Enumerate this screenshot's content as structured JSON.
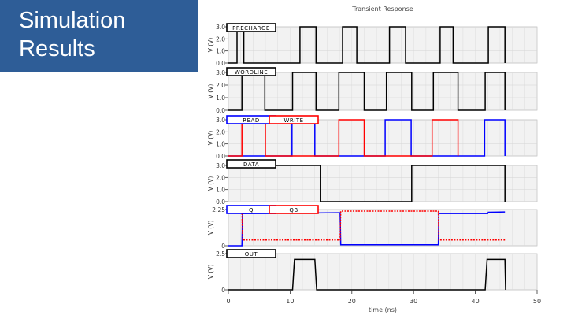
{
  "slide": {
    "title": "Simulation\nResults",
    "title_panel_color": "#2e5d97"
  },
  "chart_data": {
    "type": "line",
    "title": "Transient Response",
    "xlabel": "time (ns)",
    "xlim": [
      0,
      50
    ],
    "xticks": [
      "0",
      "10",
      "20",
      "30",
      "40",
      "50"
    ],
    "grid": true,
    "panels": [
      {
        "ylabel": "V (V)",
        "ylim": [
          0,
          3.0
        ],
        "yticks": [
          "3.0",
          "2.0",
          "1.0",
          "0.0"
        ],
        "legend": [
          {
            "text": "PRECHARGE",
            "color": "#000000"
          }
        ],
        "series": [
          {
            "color": "#000000",
            "dash": false,
            "x": [
              0,
              1.4,
              1.4,
              2.5,
              2.5,
              11.6,
              11.6,
              14.2,
              14.2,
              18.5,
              18.5,
              20.8,
              20.8,
              26.1,
              26.1,
              28.7,
              28.7,
              34.3,
              34.3,
              36.4,
              36.4,
              42.1,
              42.1,
              44.8,
              44.8
            ],
            "y": [
              0,
              0,
              3,
              3,
              0,
              0,
              3,
              3,
              0,
              0,
              3,
              3,
              0,
              0,
              3,
              3,
              0,
              0,
              3,
              3,
              0,
              0,
              3,
              3,
              0
            ]
          }
        ]
      },
      {
        "ylabel": "V (V)",
        "ylim": [
          0,
          3.0
        ],
        "yticks": [
          "3.0",
          "2.0",
          "1.0",
          "0.0"
        ],
        "legend": [
          {
            "text": "WORDLINE",
            "color": "#000000"
          }
        ],
        "series": [
          {
            "color": "#000000",
            "dash": false,
            "x": [
              0,
              2.2,
              2.2,
              5.9,
              5.9,
              10.4,
              10.4,
              14.2,
              14.2,
              17.9,
              17.9,
              22.0,
              22.0,
              25.6,
              25.6,
              29.7,
              29.7,
              33.2,
              33.2,
              37.2,
              37.2,
              41.6,
              41.6,
              44.8,
              44.8
            ],
            "y": [
              0,
              0,
              3,
              3,
              0,
              0,
              3,
              3,
              0,
              0,
              3,
              3,
              0,
              0,
              3,
              3,
              0,
              0,
              3,
              3,
              0,
              0,
              3,
              3,
              0
            ]
          }
        ]
      },
      {
        "ylabel": "V (V)",
        "ylim": [
          0,
          3.0
        ],
        "yticks": [
          "3.0",
          "2.0",
          "1.0",
          "0.0"
        ],
        "legend": [
          {
            "text": "READ",
            "color": "#0000ff"
          },
          {
            "text": "WRITE",
            "color": "#ff0000"
          }
        ],
        "series": [
          {
            "name": "READ",
            "color": "#0000ff",
            "dash": false,
            "x": [
              0,
              10.3,
              10.3,
              14.0,
              14.0,
              25.4,
              25.4,
              29.6,
              29.6,
              41.5,
              41.5,
              44.8,
              44.8
            ],
            "y": [
              0,
              0,
              3,
              3,
              0,
              0,
              3,
              3,
              0,
              0,
              3,
              3,
              0
            ]
          },
          {
            "name": "WRITE",
            "color": "#ff0000",
            "dash": false,
            "x": [
              0,
              2.2,
              2.2,
              6.0,
              6.0,
              17.9,
              17.9,
              22.0,
              22.0,
              33.0,
              33.0,
              37.2,
              37.2
            ],
            "y": [
              0,
              0,
              3,
              3,
              0,
              0,
              3,
              3,
              0,
              0,
              3,
              3,
              0
            ]
          }
        ]
      },
      {
        "ylabel": "V (V)",
        "ylim": [
          0,
          3.0
        ],
        "yticks": [
          "3.0",
          "2.0",
          "1.0",
          "0.0"
        ],
        "legend": [
          {
            "text": "DATA",
            "color": "#000000"
          }
        ],
        "series": [
          {
            "color": "#000000",
            "dash": false,
            "x": [
              0,
              14.9,
              14.9,
              29.7,
              29.7,
              44.8,
              44.8
            ],
            "y": [
              3,
              3,
              0,
              0,
              3,
              3,
              0
            ]
          }
        ]
      },
      {
        "ylabel": "V (V)",
        "ylim": [
          0,
          2.25
        ],
        "yticks": [
          "2.25",
          "0"
        ],
        "legend": [
          {
            "text": "Q",
            "color": "#0000ff"
          },
          {
            "text": "QB",
            "color": "#ff0000"
          }
        ],
        "series": [
          {
            "name": "Q",
            "color": "#0000ff",
            "dash": false,
            "x": [
              0,
              2.2,
              2.3,
              18.1,
              18.2,
              34.0,
              34.1,
              42.0,
              42.1,
              44.8
            ],
            "y": [
              0,
              0,
              2.0,
              2.05,
              0.06,
              0.06,
              2.0,
              2.0,
              2.08,
              2.1
            ]
          },
          {
            "name": "QB",
            "color": "#ff0000",
            "dash": true,
            "x": [
              0,
              2.2,
              2.3,
              18.1,
              18.2,
              34.0,
              34.1,
              44.8
            ],
            "y": [
              2.2,
              2.2,
              0.35,
              0.35,
              2.15,
              2.15,
              0.35,
              0.35
            ]
          }
        ]
      },
      {
        "ylabel": "V (V)",
        "ylim": [
          0,
          2.5
        ],
        "yticks": [
          "2.5",
          "0"
        ],
        "legend": [
          {
            "text": "OUT",
            "color": "#000000"
          }
        ],
        "series": [
          {
            "color": "#000000",
            "dash": false,
            "x": [
              0,
              10.4,
              10.7,
              14.0,
              14.3,
              41.6,
              41.9,
              44.8,
              44.9
            ],
            "y": [
              0,
              0,
              2.1,
              2.1,
              0,
              0,
              2.1,
              2.1,
              0
            ]
          }
        ]
      }
    ]
  }
}
